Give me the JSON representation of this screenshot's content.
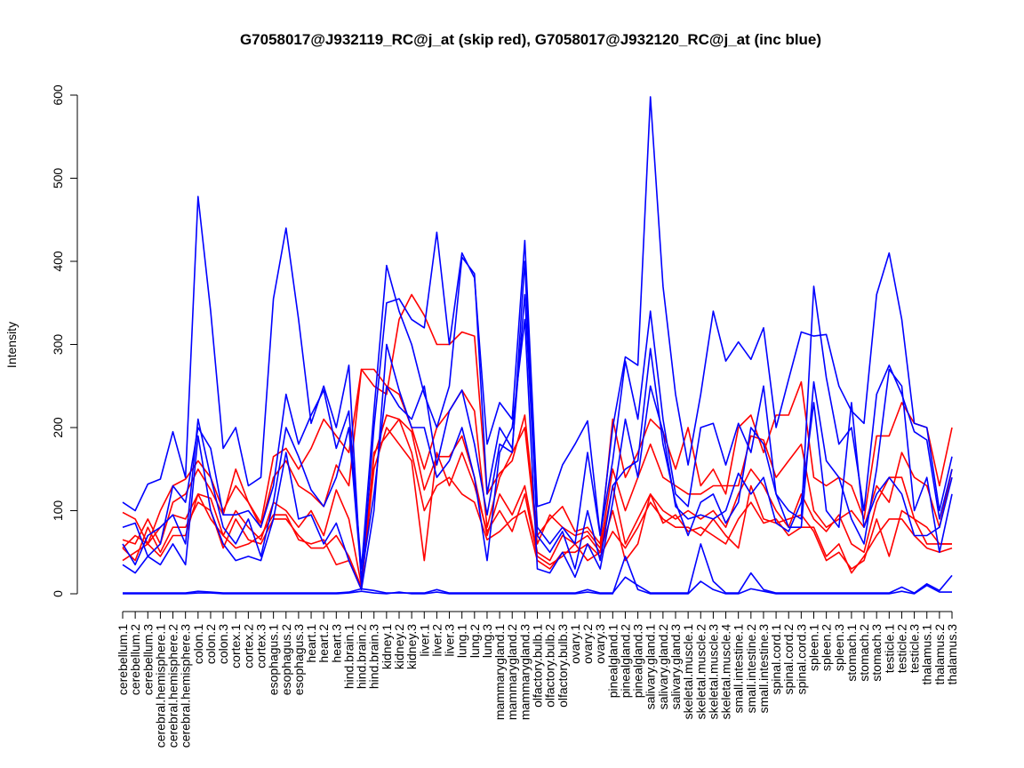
{
  "chart_data": {
    "type": "line",
    "title": "G7058017@J932119_RC@j_at (skip red), G7058017@J932120_RC@j_at (inc blue)",
    "xlabel": "",
    "ylabel": "Intensity",
    "ylim": [
      0,
      600
    ],
    "yticks": [
      "0",
      "100",
      "200",
      "300",
      "400",
      "500",
      "600"
    ],
    "grid": false,
    "categories": [
      "cerebellum.1",
      "cerebellum.2",
      "cerebellum.3",
      "cerebral.hemisphere.1",
      "cerebral.hemisphere.2",
      "cerebral.hemisphere.3",
      "colon.1",
      "colon.2",
      "colon.3",
      "cortex.1",
      "cortex.2",
      "cortex.3",
      "esophagus.1",
      "esophagus.2",
      "esophagus.3",
      "heart.1",
      "heart.2",
      "heart.3",
      "hind.brain.1",
      "hind.brain.2",
      "hind.brain.3",
      "kidney.1",
      "kidney.2",
      "kidney.3",
      "liver.1",
      "liver.2",
      "liver.3",
      "lung.1",
      "lung.2",
      "lung.3",
      "mammarygland.1",
      "mammarygland.2",
      "mammarygland.3",
      "olfactory.bulb.1",
      "olfactory.bulb.2",
      "olfactory.bulb.3",
      "ovary.1",
      "ovary.2",
      "ovary.3",
      "pinealgland.1",
      "pinealgland.2",
      "pinealgland.3",
      "salivary.gland.1",
      "salivary.gland.2",
      "salivary.gland.3",
      "skeletal.muscle.1",
      "skeletal.muscle.2",
      "skeletal.muscle.3",
      "skeletal.muscle.4",
      "small.intestine.1",
      "small.intestine.2",
      "small.intestine.3",
      "spinal.cord.1",
      "spinal.cord.2",
      "spinal.cord.3",
      "spleen.1",
      "spleen.2",
      "spleen.3",
      "stomach.1",
      "stomach.2",
      "stomach.3",
      "testicle.1",
      "testicle.2",
      "testicle.3",
      "thalamus.1",
      "thalamus.2",
      "thalamus.3"
    ],
    "series": [
      {
        "group": "skip",
        "color": "#ff0000",
        "values": [
          98,
          90,
          60,
          100,
          130,
          138,
          160,
          140,
          100,
          130,
          110,
          85,
          165,
          175,
          150,
          175,
          210,
          190,
          170,
          270,
          250,
          240,
          330,
          360,
          335,
          300,
          300,
          315,
          310,
          120,
          145,
          160,
          215,
          70,
          90,
          105,
          75,
          80,
          60,
          210,
          140,
          170,
          210,
          195,
          150,
          200,
          130,
          150,
          120,
          200,
          215,
          170,
          215,
          215,
          255,
          140,
          130,
          140,
          130,
          90,
          190,
          190,
          230,
          205,
          200,
          130,
          200
        ]
      },
      {
        "group": "skip",
        "color": "#ff0000",
        "values": [
          65,
          60,
          90,
          60,
          110,
          120,
          150,
          125,
          95,
          150,
          110,
          80,
          140,
          160,
          130,
          120,
          105,
          155,
          130,
          270,
          270,
          250,
          240,
          200,
          150,
          200,
          220,
          245,
          220,
          80,
          140,
          170,
          200,
          60,
          95,
          80,
          70,
          75,
          55,
          150,
          100,
          140,
          180,
          140,
          130,
          120,
          120,
          130,
          130,
          130,
          190,
          185,
          140,
          160,
          180,
          100,
          80,
          90,
          100,
          80,
          130,
          110,
          170,
          140,
          130,
          80,
          150
        ]
      },
      {
        "group": "skip",
        "color": "#ff0000",
        "values": [
          55,
          70,
          60,
          80,
          95,
          90,
          120,
          115,
          70,
          100,
          80,
          65,
          110,
          100,
          80,
          100,
          70,
          125,
          90,
          10,
          165,
          215,
          210,
          195,
          125,
          165,
          165,
          190,
          140,
          70,
          120,
          95,
          130,
          50,
          40,
          70,
          60,
          70,
          50,
          130,
          60,
          90,
          120,
          100,
          90,
          100,
          90,
          100,
          80,
          120,
          150,
          130,
          100,
          80,
          120,
          90,
          75,
          95,
          60,
          50,
          110,
          140,
          140,
          90,
          80,
          60,
          60
        ]
      },
      {
        "group": "skip",
        "color": "#ff0000",
        "values": [
          40,
          50,
          60,
          45,
          70,
          70,
          120,
          90,
          70,
          55,
          60,
          70,
          95,
          95,
          65,
          60,
          65,
          35,
          40,
          5,
          170,
          190,
          210,
          170,
          100,
          130,
          140,
          120,
          110,
          65,
          75,
          90,
          100,
          40,
          30,
          50,
          50,
          60,
          45,
          75,
          55,
          80,
          110,
          90,
          80,
          80,
          70,
          90,
          70,
          55,
          130,
          90,
          85,
          90,
          95,
          75,
          40,
          50,
          30,
          40,
          90,
          45,
          100,
          90,
          60,
          60,
          60
        ]
      },
      {
        "group": "skip",
        "color": "#ff0000",
        "values": [
          55,
          40,
          80,
          50,
          80,
          80,
          110,
          100,
          55,
          90,
          65,
          60,
          90,
          90,
          70,
          55,
          55,
          70,
          45,
          8,
          150,
          200,
          180,
          160,
          40,
          170,
          130,
          170,
          130,
          75,
          100,
          75,
          120,
          45,
          35,
          45,
          60,
          40,
          50,
          100,
          40,
          60,
          120,
          85,
          95,
          75,
          80,
          70,
          60,
          90,
          110,
          85,
          90,
          70,
          80,
          80,
          45,
          60,
          25,
          45,
          70,
          90,
          90,
          70,
          55,
          50,
          55
        ]
      },
      {
        "group": "inc",
        "color": "#0000ff",
        "values": [
          110,
          100,
          132,
          138,
          195,
          140,
          478,
          340,
          175,
          200,
          130,
          140,
          355,
          440,
          330,
          205,
          250,
          200,
          275,
          10,
          200,
          350,
          355,
          330,
          320,
          435,
          300,
          410,
          380,
          180,
          230,
          210,
          425,
          105,
          110,
          155,
          180,
          208,
          70,
          200,
          285,
          275,
          598,
          370,
          240,
          155,
          240,
          340,
          280,
          303,
          282,
          320,
          200,
          258,
          315,
          310,
          312,
          250,
          220,
          205,
          360,
          410,
          330,
          205,
          200,
          100,
          165
        ]
      },
      {
        "group": "inc",
        "color": "#0000ff",
        "values": [
          80,
          85,
          45,
          60,
          130,
          110,
          200,
          175,
          95,
          95,
          100,
          80,
          130,
          240,
          180,
          215,
          245,
          175,
          220,
          30,
          220,
          395,
          340,
          300,
          240,
          200,
          250,
          405,
          385,
          120,
          200,
          175,
          360,
          80,
          60,
          80,
          60,
          170,
          70,
          160,
          280,
          210,
          340,
          210,
          120,
          105,
          200,
          205,
          155,
          205,
          170,
          250,
          120,
          100,
          90,
          370,
          260,
          180,
          200,
          100,
          240,
          275,
          240,
          195,
          185,
          90,
          150
        ]
      },
      {
        "group": "inc",
        "color": "#0000ff",
        "values": [
          60,
          35,
          70,
          80,
          95,
          60,
          210,
          140,
          80,
          60,
          90,
          45,
          110,
          200,
          165,
          125,
          105,
          140,
          200,
          20,
          120,
          250,
          225,
          210,
          250,
          155,
          220,
          245,
          180,
          95,
          180,
          170,
          400,
          70,
          50,
          75,
          30,
          100,
          40,
          130,
          150,
          160,
          295,
          180,
          110,
          70,
          110,
          120,
          85,
          110,
          200,
          180,
          120,
          80,
          80,
          255,
          160,
          140,
          90,
          60,
          150,
          270,
          250,
          100,
          140,
          50,
          120
        ]
      },
      {
        "group": "inc",
        "color": "#0000ff",
        "values": [
          35,
          25,
          45,
          35,
          60,
          35,
          190,
          100,
          60,
          40,
          45,
          40,
          90,
          170,
          90,
          95,
          60,
          85,
          40,
          5,
          100,
          300,
          245,
          200,
          200,
          140,
          160,
          200,
          140,
          40,
          170,
          200,
          330,
          30,
          25,
          50,
          20,
          60,
          30,
          110,
          210,
          140,
          250,
          195,
          105,
          90,
          95,
          90,
          100,
          145,
          120,
          140,
          85,
          75,
          110,
          230,
          100,
          80,
          230,
          80,
          120,
          140,
          120,
          70,
          70,
          80,
          140
        ]
      },
      {
        "group": "inc",
        "color": "#0000ff",
        "values": [
          1,
          1,
          1,
          1,
          1,
          1,
          3,
          2,
          1,
          1,
          1,
          1,
          1,
          1,
          1,
          1,
          1,
          1,
          2,
          6,
          4,
          1,
          1,
          1,
          1,
          5,
          1,
          1,
          1,
          1,
          1,
          1,
          1,
          1,
          1,
          1,
          1,
          5,
          1,
          1,
          20,
          10,
          1,
          1,
          1,
          1,
          60,
          15,
          1,
          1,
          25,
          5,
          1,
          1,
          1,
          1,
          1,
          1,
          1,
          1,
          1,
          1,
          8,
          1,
          12,
          4,
          22
        ]
      },
      {
        "group": "inc",
        "color": "#0000ff",
        "values": [
          0,
          0,
          0,
          0,
          0,
          0,
          1,
          1,
          0,
          0,
          0,
          0,
          0,
          0,
          0,
          0,
          0,
          0,
          1,
          3,
          1,
          0,
          2,
          0,
          0,
          2,
          0,
          0,
          0,
          0,
          0,
          0,
          0,
          0,
          0,
          0,
          0,
          2,
          0,
          0,
          45,
          5,
          0,
          0,
          0,
          0,
          15,
          5,
          0,
          0,
          6,
          3,
          0,
          0,
          0,
          0,
          0,
          0,
          0,
          0,
          0,
          0,
          3,
          0,
          10,
          2,
          2
        ]
      }
    ]
  }
}
